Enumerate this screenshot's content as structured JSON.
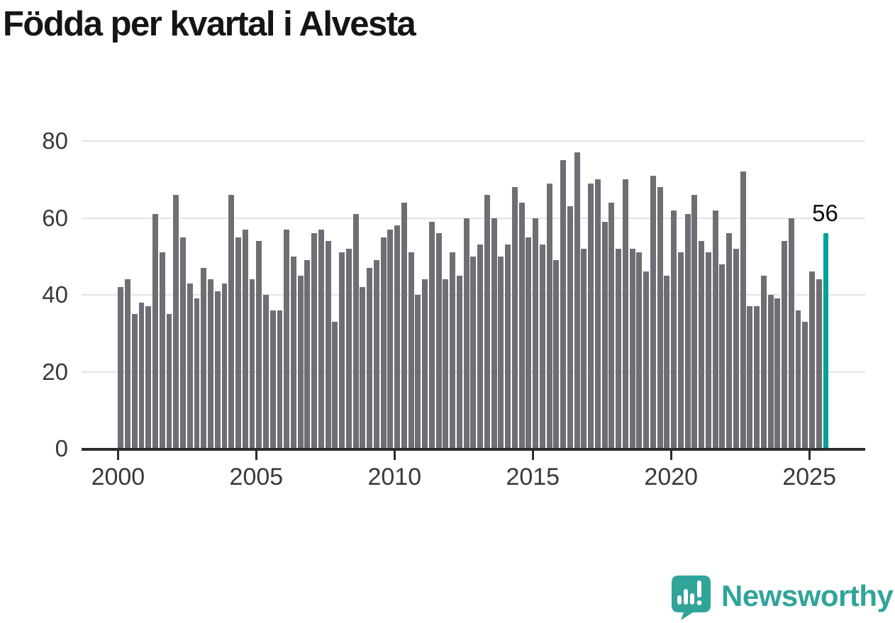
{
  "title": "Födda per kvartal i Alvesta",
  "colors": {
    "bar": "#6e6e74",
    "accent": "#00a29a",
    "gridline": "#e4e4e4",
    "axis_line": "#2d2d2d",
    "label": "#3a3a3a",
    "title": "#151515",
    "logo": "#31a49a"
  },
  "logo": {
    "text": "Newsworthy",
    "icon": "newsworthy-chart-bubble-icon"
  },
  "chart_data": {
    "type": "bar",
    "title": "Födda per kvartal i Alvesta",
    "xlabel": "",
    "ylabel": "",
    "ylim": [
      0,
      80
    ],
    "y_ticks": [
      0,
      20,
      40,
      60,
      80
    ],
    "x_tick_labels": [
      "2000",
      "2005",
      "2010",
      "2015",
      "2020",
      "2025"
    ],
    "grid": "horizontal",
    "legend": "none",
    "highlight_last": true,
    "annotation": {
      "label": "56",
      "index": 102
    },
    "categories": [
      "2000 Q1",
      "2000 Q2",
      "2000 Q3",
      "2000 Q4",
      "2001 Q1",
      "2001 Q2",
      "2001 Q3",
      "2001 Q4",
      "2002 Q1",
      "2002 Q2",
      "2002 Q3",
      "2002 Q4",
      "2003 Q1",
      "2003 Q2",
      "2003 Q3",
      "2003 Q4",
      "2004 Q1",
      "2004 Q2",
      "2004 Q3",
      "2004 Q4",
      "2005 Q1",
      "2005 Q2",
      "2005 Q3",
      "2005 Q4",
      "2006 Q1",
      "2006 Q2",
      "2006 Q3",
      "2006 Q4",
      "2007 Q1",
      "2007 Q2",
      "2007 Q3",
      "2007 Q4",
      "2008 Q1",
      "2008 Q2",
      "2008 Q3",
      "2008 Q4",
      "2009 Q1",
      "2009 Q2",
      "2009 Q3",
      "2009 Q4",
      "2010 Q1",
      "2010 Q2",
      "2010 Q3",
      "2010 Q4",
      "2011 Q1",
      "2011 Q2",
      "2011 Q3",
      "2011 Q4",
      "2012 Q1",
      "2012 Q2",
      "2012 Q3",
      "2012 Q4",
      "2013 Q1",
      "2013 Q2",
      "2013 Q3",
      "2013 Q4",
      "2014 Q1",
      "2014 Q2",
      "2014 Q3",
      "2014 Q4",
      "2015 Q1",
      "2015 Q2",
      "2015 Q3",
      "2015 Q4",
      "2016 Q1",
      "2016 Q2",
      "2016 Q3",
      "2016 Q4",
      "2017 Q1",
      "2017 Q2",
      "2017 Q3",
      "2017 Q4",
      "2018 Q1",
      "2018 Q2",
      "2018 Q3",
      "2018 Q4",
      "2019 Q1",
      "2019 Q2",
      "2019 Q3",
      "2019 Q4",
      "2020 Q1",
      "2020 Q2",
      "2020 Q3",
      "2020 Q4",
      "2021 Q1",
      "2021 Q2",
      "2021 Q3",
      "2021 Q4",
      "2022 Q1",
      "2022 Q2",
      "2022 Q3",
      "2022 Q4",
      "2023 Q1",
      "2023 Q2",
      "2023 Q3",
      "2023 Q4",
      "2024 Q1",
      "2024 Q2",
      "2024 Q3",
      "2024 Q4",
      "2025 Q1",
      "2025 Q2",
      "2025 Q3"
    ],
    "values": [
      42,
      44,
      35,
      38,
      37,
      61,
      51,
      35,
      66,
      55,
      43,
      39,
      47,
      44,
      41,
      43,
      66,
      55,
      57,
      44,
      54,
      40,
      36,
      36,
      57,
      50,
      45,
      49,
      56,
      57,
      54,
      33,
      51,
      52,
      61,
      42,
      47,
      49,
      55,
      57,
      58,
      64,
      51,
      40,
      44,
      59,
      56,
      44,
      51,
      45,
      60,
      50,
      53,
      66,
      60,
      50,
      53,
      68,
      64,
      55,
      60,
      53,
      69,
      49,
      75,
      63,
      77,
      52,
      69,
      70,
      59,
      64,
      52,
      70,
      52,
      51,
      46,
      71,
      68,
      45,
      62,
      51,
      61,
      66,
      54,
      51,
      62,
      48,
      56,
      52,
      72,
      37,
      37,
      45,
      40,
      39,
      54,
      60,
      36,
      33,
      46,
      44,
      56
    ]
  }
}
